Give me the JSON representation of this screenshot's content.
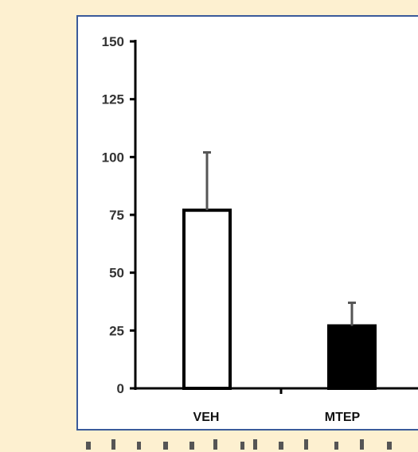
{
  "chart_data": {
    "type": "bar",
    "title": "",
    "xlabel": "",
    "ylabel": "",
    "categories": [
      "VEH",
      "MTEP"
    ],
    "series": [
      {
        "values": [
          77,
          27
        ],
        "error": [
          25,
          10
        ],
        "colors": [
          "#ffffff",
          "#000000"
        ]
      }
    ],
    "ylim": [
      0,
      150
    ],
    "yticks": [
      0,
      25,
      50,
      75,
      100,
      125,
      150
    ],
    "grid": false,
    "legend": "none"
  },
  "colors": {
    "page_background": "#fdf0d0",
    "frame_border": "#3a5a9a",
    "axis": "#000000",
    "error_bar": "#555555"
  }
}
